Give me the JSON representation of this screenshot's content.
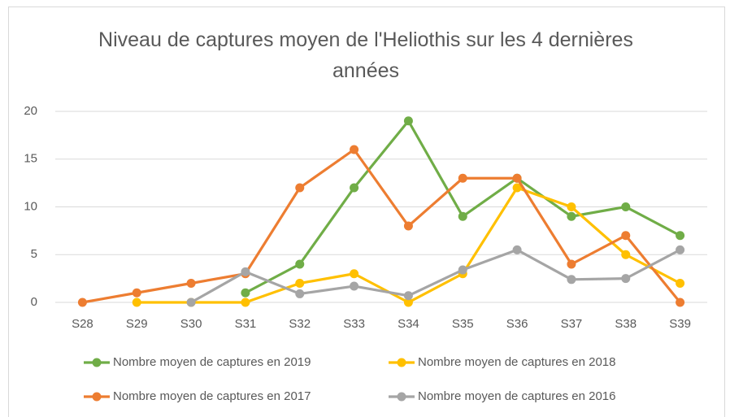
{
  "chart_data": {
    "type": "line",
    "title": "Niveau de captures moyen de l'Heliothis sur les 4 dernières années",
    "categories": [
      "S28",
      "S29",
      "S30",
      "S31",
      "S32",
      "S33",
      "S34",
      "S35",
      "S36",
      "S37",
      "S38",
      "S39"
    ],
    "series": [
      {
        "name": "Nombre moyen de captures en 2019",
        "color": "#70ad47",
        "values": [
          null,
          null,
          null,
          1,
          4,
          12,
          19,
          9,
          13,
          9,
          10,
          7
        ]
      },
      {
        "name": "Nombre moyen de captures en 2018",
        "color": "#ffc000",
        "values": [
          null,
          0,
          0,
          0,
          2,
          3,
          0,
          3,
          12,
          10,
          5,
          2
        ]
      },
      {
        "name": "Nombre moyen de captures en 2017",
        "color": "#ed7d31",
        "values": [
          0,
          1,
          2,
          3,
          12,
          16,
          8,
          13,
          13,
          4,
          7,
          0
        ]
      },
      {
        "name": "Nombre moyen de captures en 2016",
        "color": "#a5a5a5",
        "values": [
          null,
          null,
          0,
          3.2,
          0.9,
          1.7,
          0.7,
          3.4,
          5.5,
          2.4,
          2.5,
          5.5
        ]
      }
    ],
    "ylim": [
      0,
      20
    ],
    "yticks": [
      0,
      5,
      10,
      15,
      20
    ],
    "grid": true
  }
}
